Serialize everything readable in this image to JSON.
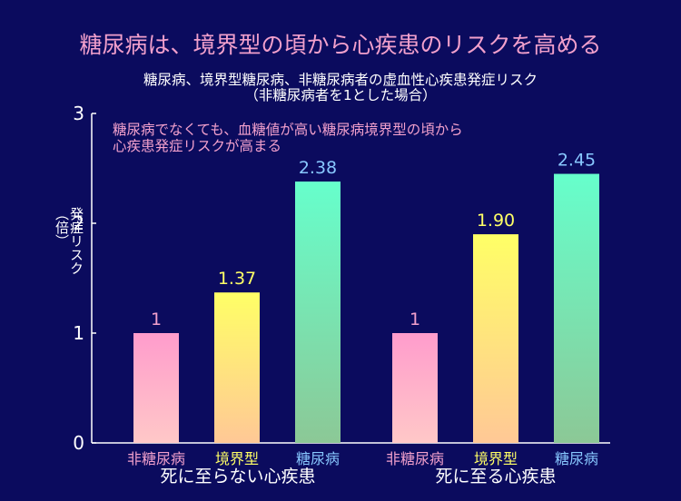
{
  "headline": "糖尿病は、境界型の頃から心疾患のリスクを高める",
  "chart_data": {
    "type": "bar",
    "title": "糖尿病、境界型糖尿病、非糖尿病者の虚血性心疾患発症リスク",
    "subtitle": "（非糖尿病者を1とした場合）",
    "annotation_line1": "糖尿病でなくても、血糖値が高い糖尿病境界型の頃から",
    "annotation_line2": "心疾患発症リスクが高まる",
    "ylabel_main": "発症リスク",
    "ylabel_unit": "（倍）",
    "ylim": [
      0,
      3
    ],
    "yticks": [
      "0",
      "1",
      "2",
      "3"
    ],
    "grid": false,
    "groups": [
      {
        "label": "死に至らない心疾患",
        "categories": [
          "非糖尿病",
          "境界型",
          "糖尿病"
        ],
        "values": [
          1,
          1.37,
          2.38
        ],
        "value_labels": [
          "1",
          "1.37",
          "2.38"
        ]
      },
      {
        "label": "死に至る心疾患",
        "categories": [
          "非糖尿病",
          "境界型",
          "糖尿病"
        ],
        "values": [
          1,
          1.9,
          2.45
        ],
        "value_labels": [
          "1",
          "1.90",
          "2.45"
        ]
      }
    ],
    "category_colors": {
      "非糖尿病": {
        "label": "#f2a0cc",
        "top": "#ff9ccc",
        "bottom": "#ffc8c8"
      },
      "境界型": {
        "label": "#ffff66",
        "top": "#ffff66",
        "bottom": "#ffc896"
      },
      "糖尿病": {
        "label": "#88c8ff",
        "top": "#66ffcc",
        "bottom": "#8cc896"
      }
    },
    "axis_color": "#ffffff",
    "value_label_colors": {
      "非糖尿病": "#f2a0cc",
      "境界型": "#ffff66",
      "糖尿病": "#88c8ff"
    }
  }
}
